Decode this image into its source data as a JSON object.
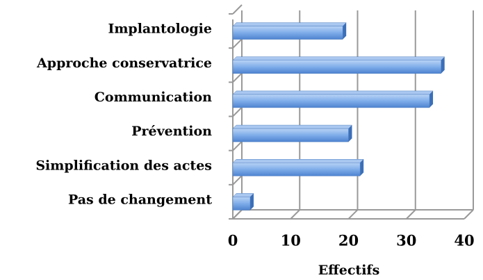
{
  "chart_data": {
    "type": "bar",
    "orientation": "horizontal",
    "x_label": "Effectifs",
    "categories": [
      "Implantologie",
      "Approche conservatrice",
      "Communication",
      "Prévention",
      "Simplification des actes",
      "Pas de changement"
    ],
    "values": [
      19,
      36,
      34,
      20,
      22,
      3
    ],
    "color": "#6a9de0",
    "xlim": [
      0,
      40
    ],
    "xticks": [
      0,
      10,
      20,
      30,
      40
    ],
    "grid": true
  }
}
